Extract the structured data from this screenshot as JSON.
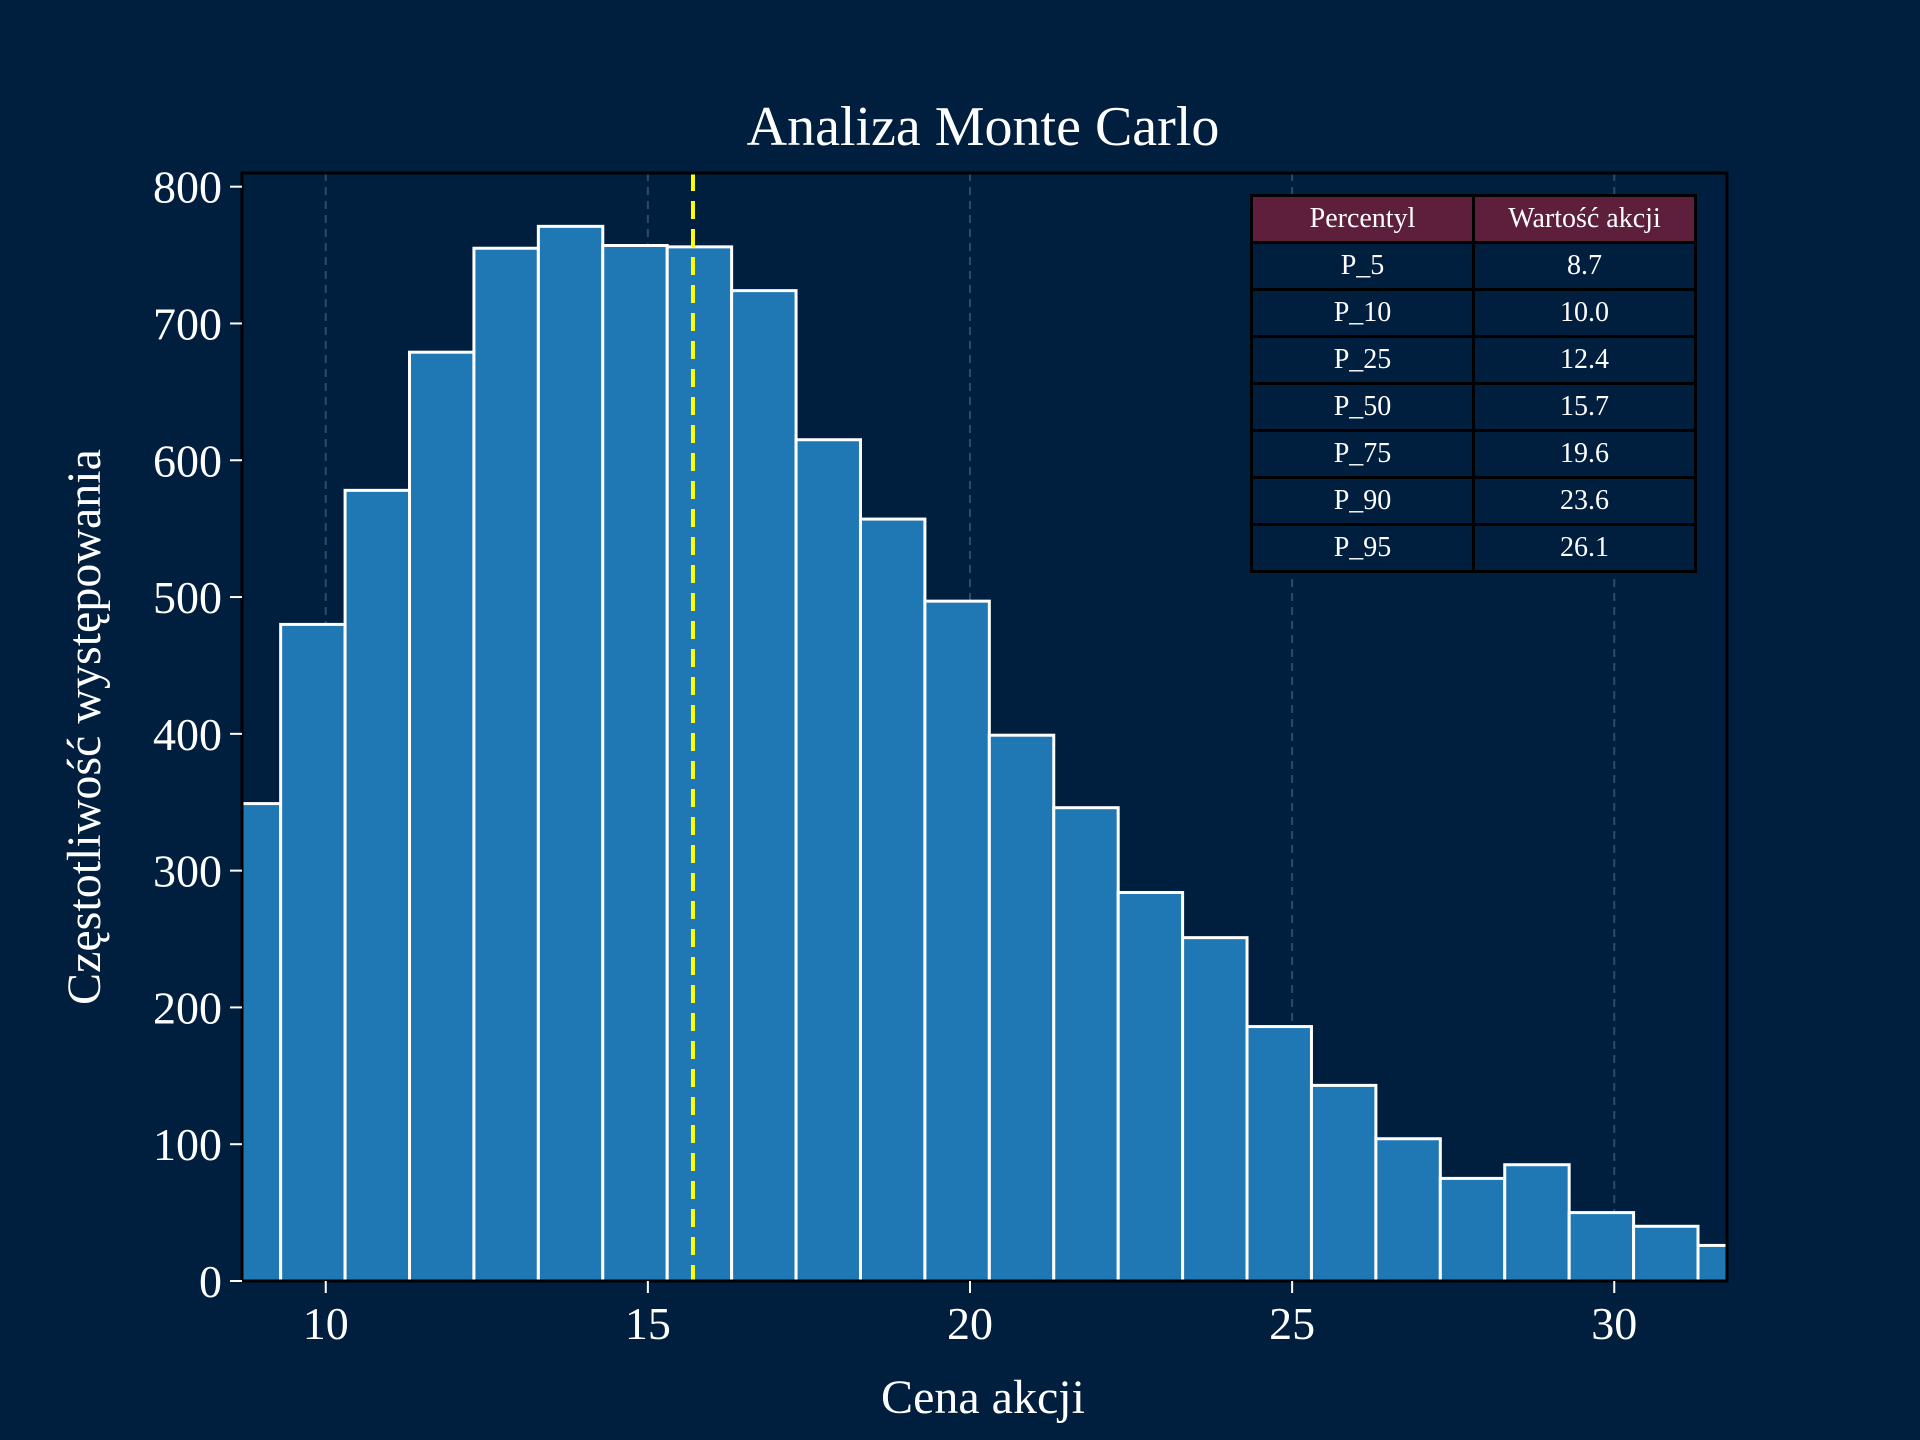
{
  "chart_data": {
    "type": "bar",
    "title": "Analiza Monte Carlo",
    "xlabel": "Cena akcji",
    "ylabel": "Częstotliwość występowania",
    "xlim": [
      8.7,
      31.75
    ],
    "ylim": [
      0,
      810
    ],
    "x_ticks": [
      10,
      15,
      20,
      25,
      30
    ],
    "y_ticks": [
      0,
      100,
      200,
      300,
      400,
      500,
      600,
      700,
      800
    ],
    "grid": "x-dashed",
    "bins": [
      {
        "x0": 8.3,
        "x1": 9.3,
        "value": 349
      },
      {
        "x0": 9.3,
        "x1": 10.3,
        "value": 480
      },
      {
        "x0": 10.3,
        "x1": 11.3,
        "value": 578
      },
      {
        "x0": 11.3,
        "x1": 12.3,
        "value": 679
      },
      {
        "x0": 12.3,
        "x1": 13.3,
        "value": 755
      },
      {
        "x0": 13.3,
        "x1": 14.3,
        "value": 771
      },
      {
        "x0": 14.3,
        "x1": 15.3,
        "value": 757
      },
      {
        "x0": 15.3,
        "x1": 16.3,
        "value": 756
      },
      {
        "x0": 16.3,
        "x1": 17.3,
        "value": 724
      },
      {
        "x0": 17.3,
        "x1": 18.3,
        "value": 615
      },
      {
        "x0": 18.3,
        "x1": 19.3,
        "value": 557
      },
      {
        "x0": 19.3,
        "x1": 20.3,
        "value": 497
      },
      {
        "x0": 20.3,
        "x1": 21.3,
        "value": 399
      },
      {
        "x0": 21.3,
        "x1": 22.3,
        "value": 346
      },
      {
        "x0": 22.3,
        "x1": 23.3,
        "value": 284
      },
      {
        "x0": 23.3,
        "x1": 24.3,
        "value": 251
      },
      {
        "x0": 24.3,
        "x1": 25.3,
        "value": 186
      },
      {
        "x0": 25.3,
        "x1": 26.3,
        "value": 143
      },
      {
        "x0": 26.3,
        "x1": 27.3,
        "value": 104
      },
      {
        "x0": 27.3,
        "x1": 28.3,
        "value": 75
      },
      {
        "x0": 28.3,
        "x1": 29.3,
        "value": 85
      },
      {
        "x0": 29.3,
        "x1": 30.3,
        "value": 50
      },
      {
        "x0": 30.3,
        "x1": 31.3,
        "value": 40
      },
      {
        "x0": 31.3,
        "x1": 32.3,
        "value": 26
      }
    ],
    "median_line": 15.7,
    "colors": {
      "background": "#001f3f",
      "bar": "#1f77b4",
      "bar_edge": "#ffffff",
      "median_line": "#ffff00",
      "grid": "#2d4a66",
      "table_header": "#5e1f3d",
      "text": "#ffffff"
    },
    "percentile_table": {
      "headers": [
        "Percentyl",
        "Wartość akcji"
      ],
      "rows": [
        [
          "P_5",
          "8.7"
        ],
        [
          "P_10",
          "10.0"
        ],
        [
          "P_25",
          "12.4"
        ],
        [
          "P_50",
          "15.7"
        ],
        [
          "P_75",
          "19.6"
        ],
        [
          "P_90",
          "23.6"
        ],
        [
          "P_95",
          "26.1"
        ]
      ]
    }
  }
}
